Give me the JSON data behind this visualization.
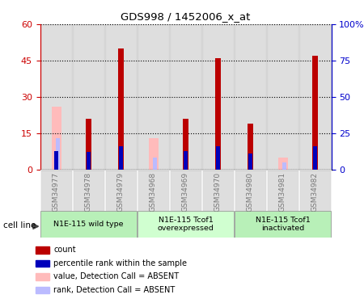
{
  "title": "GDS998 / 1452006_x_at",
  "samples": [
    "GSM34977",
    "GSM34978",
    "GSM34979",
    "GSM34968",
    "GSM34969",
    "GSM34970",
    "GSM34980",
    "GSM34981",
    "GSM34982"
  ],
  "count_values": [
    0,
    21,
    50,
    0,
    21,
    46,
    19,
    0,
    47
  ],
  "percentile_values": [
    13,
    12,
    16,
    0,
    13,
    16,
    11,
    0,
    16
  ],
  "absent_value_values": [
    26,
    0,
    0,
    13,
    0,
    0,
    0,
    5,
    0
  ],
  "absent_rank_values": [
    13,
    0,
    0,
    5,
    0,
    0,
    0,
    3,
    0
  ],
  "ylim_left": [
    0,
    60
  ],
  "ylim_right": [
    0,
    100
  ],
  "yticks_left": [
    0,
    15,
    30,
    45,
    60
  ],
  "ytick_labels_left": [
    "0",
    "15",
    "30",
    "45",
    "60"
  ],
  "yticks_right": [
    0,
    25,
    50,
    75,
    100
  ],
  "ytick_labels_right": [
    "0",
    "25",
    "50",
    "75",
    "100%"
  ],
  "groups": [
    {
      "label": "N1E-115 wild type",
      "samples": [
        0,
        1,
        2
      ],
      "color": "#b8f0b8"
    },
    {
      "label": "N1E-115 Tcof1\noverexpressed",
      "samples": [
        3,
        4,
        5
      ],
      "color": "#d0ffd0"
    },
    {
      "label": "N1E-115 Tcof1\ninactivated",
      "samples": [
        6,
        7,
        8
      ],
      "color": "#b8f0b8"
    }
  ],
  "color_count": "#bb0000",
  "color_percentile": "#0000bb",
  "color_absent_value": "#ffbbbb",
  "color_absent_rank": "#bbbbff",
  "tick_color_left": "#cc0000",
  "tick_color_right": "#0000cc",
  "bg_bar_color": "#c8c8c8",
  "legend_items": [
    {
      "label": "count",
      "color": "#bb0000"
    },
    {
      "label": "percentile rank within the sample",
      "color": "#0000bb"
    },
    {
      "label": "value, Detection Call = ABSENT",
      "color": "#ffbbbb"
    },
    {
      "label": "rank, Detection Call = ABSENT",
      "color": "#bbbbff"
    }
  ],
  "cell_line_label": "cell line",
  "arrow_color": "#444444"
}
